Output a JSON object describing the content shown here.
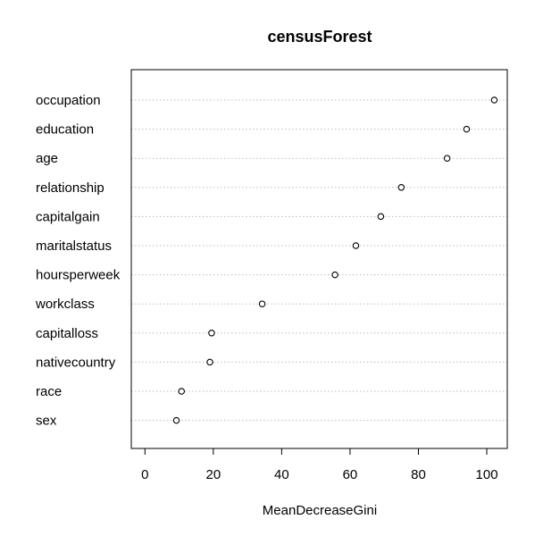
{
  "chart_data": {
    "type": "scatter",
    "title": "censusForest",
    "xlabel": "MeanDecreaseGini",
    "ylabel": "",
    "xlim": [
      -4,
      106
    ],
    "xticks": [
      0,
      20,
      40,
      60,
      80,
      100
    ],
    "grid": "dotted horizontal lines",
    "categories": [
      "occupation",
      "education",
      "age",
      "relationship",
      "capitalgain",
      "maritalstatus",
      "hoursperweek",
      "workclass",
      "capitalloss",
      "nativecountry",
      "race",
      "sex"
    ],
    "values": [
      102.2,
      94.1,
      88.4,
      75.0,
      69.0,
      61.7,
      55.6,
      34.3,
      19.5,
      19.0,
      10.7,
      9.2
    ]
  }
}
